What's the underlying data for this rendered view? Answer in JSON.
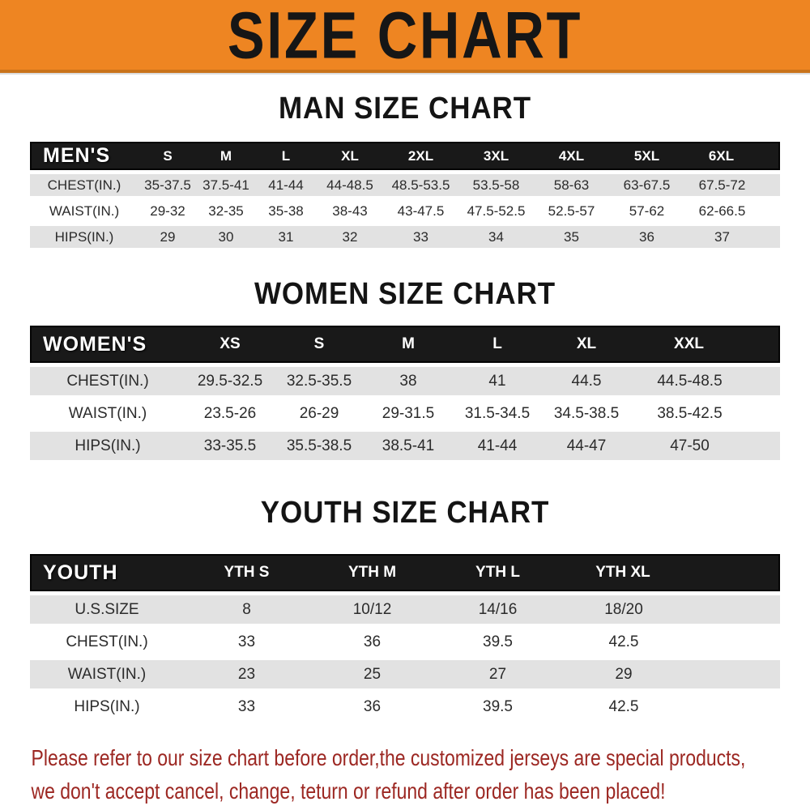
{
  "banner": {
    "title": "SIZE CHART",
    "bg_color": "#EE8522",
    "border_color": "#C9731B",
    "text_color": "#161616"
  },
  "sections": {
    "men": {
      "title": "MAN SIZE CHART",
      "header_label": "MEN'S",
      "columns": [
        "S",
        "M",
        "L",
        "XL",
        "2XL",
        "3XL",
        "4XL",
        "5XL",
        "6XL"
      ],
      "rows": [
        {
          "label": "CHEST(IN.)",
          "values": [
            "35-37.5",
            "37.5-41",
            "41-44",
            "44-48.5",
            "48.5-53.5",
            "53.5-58",
            "58-63",
            "63-67.5",
            "67.5-72"
          ]
        },
        {
          "label": "WAIST(IN.)",
          "values": [
            "29-32",
            "32-35",
            "35-38",
            "38-43",
            "43-47.5",
            "47.5-52.5",
            "52.5-57",
            "57-62",
            "62-66.5"
          ]
        },
        {
          "label": "HIPS(IN.)",
          "values": [
            "29",
            "30",
            "31",
            "32",
            "33",
            "34",
            "35",
            "36",
            "37"
          ]
        }
      ]
    },
    "women": {
      "title": "WOMEN SIZE CHART",
      "header_label": "WOMEN'S",
      "columns": [
        "XS",
        "S",
        "M",
        "L",
        "XL",
        "XXL"
      ],
      "rows": [
        {
          "label": "CHEST(IN.)",
          "values": [
            "29.5-32.5",
            "32.5-35.5",
            "38",
            "41",
            "44.5",
            "44.5-48.5"
          ]
        },
        {
          "label": "WAIST(IN.)",
          "values": [
            "23.5-26",
            "26-29",
            "29-31.5",
            "31.5-34.5",
            "34.5-38.5",
            "38.5-42.5"
          ]
        },
        {
          "label": "HIPS(IN.)",
          "values": [
            "33-35.5",
            "35.5-38.5",
            "38.5-41",
            "41-44",
            "44-47",
            "47-50"
          ]
        }
      ]
    },
    "youth": {
      "title": "YOUTH SIZE CHART",
      "header_label": "YOUTH",
      "columns": [
        "YTH S",
        "YTH M",
        "YTH L",
        "YTH XL"
      ],
      "rows": [
        {
          "label": "U.S.SIZE",
          "values": [
            "8",
            "10/12",
            "14/16",
            "18/20"
          ]
        },
        {
          "label": "CHEST(IN.)",
          "values": [
            "33",
            "36",
            "39.5",
            "42.5"
          ]
        },
        {
          "label": "WAIST(IN.)",
          "values": [
            "23",
            "25",
            "27",
            "29"
          ]
        },
        {
          "label": "HIPS(IN.)",
          "values": [
            "33",
            "36",
            "39.5",
            "42.5"
          ]
        }
      ]
    }
  },
  "footer": {
    "line1": "Please refer to our size chart before order,the customized jerseys are special products,",
    "line2": "we don't accept cancel, change, teturn or refund after order has been placed!",
    "text_color": "#9C2722"
  },
  "colors": {
    "header_row_black": "#191919",
    "striped_row_gray": "#E2E2E2",
    "row_white": "#FFFFFF"
  }
}
